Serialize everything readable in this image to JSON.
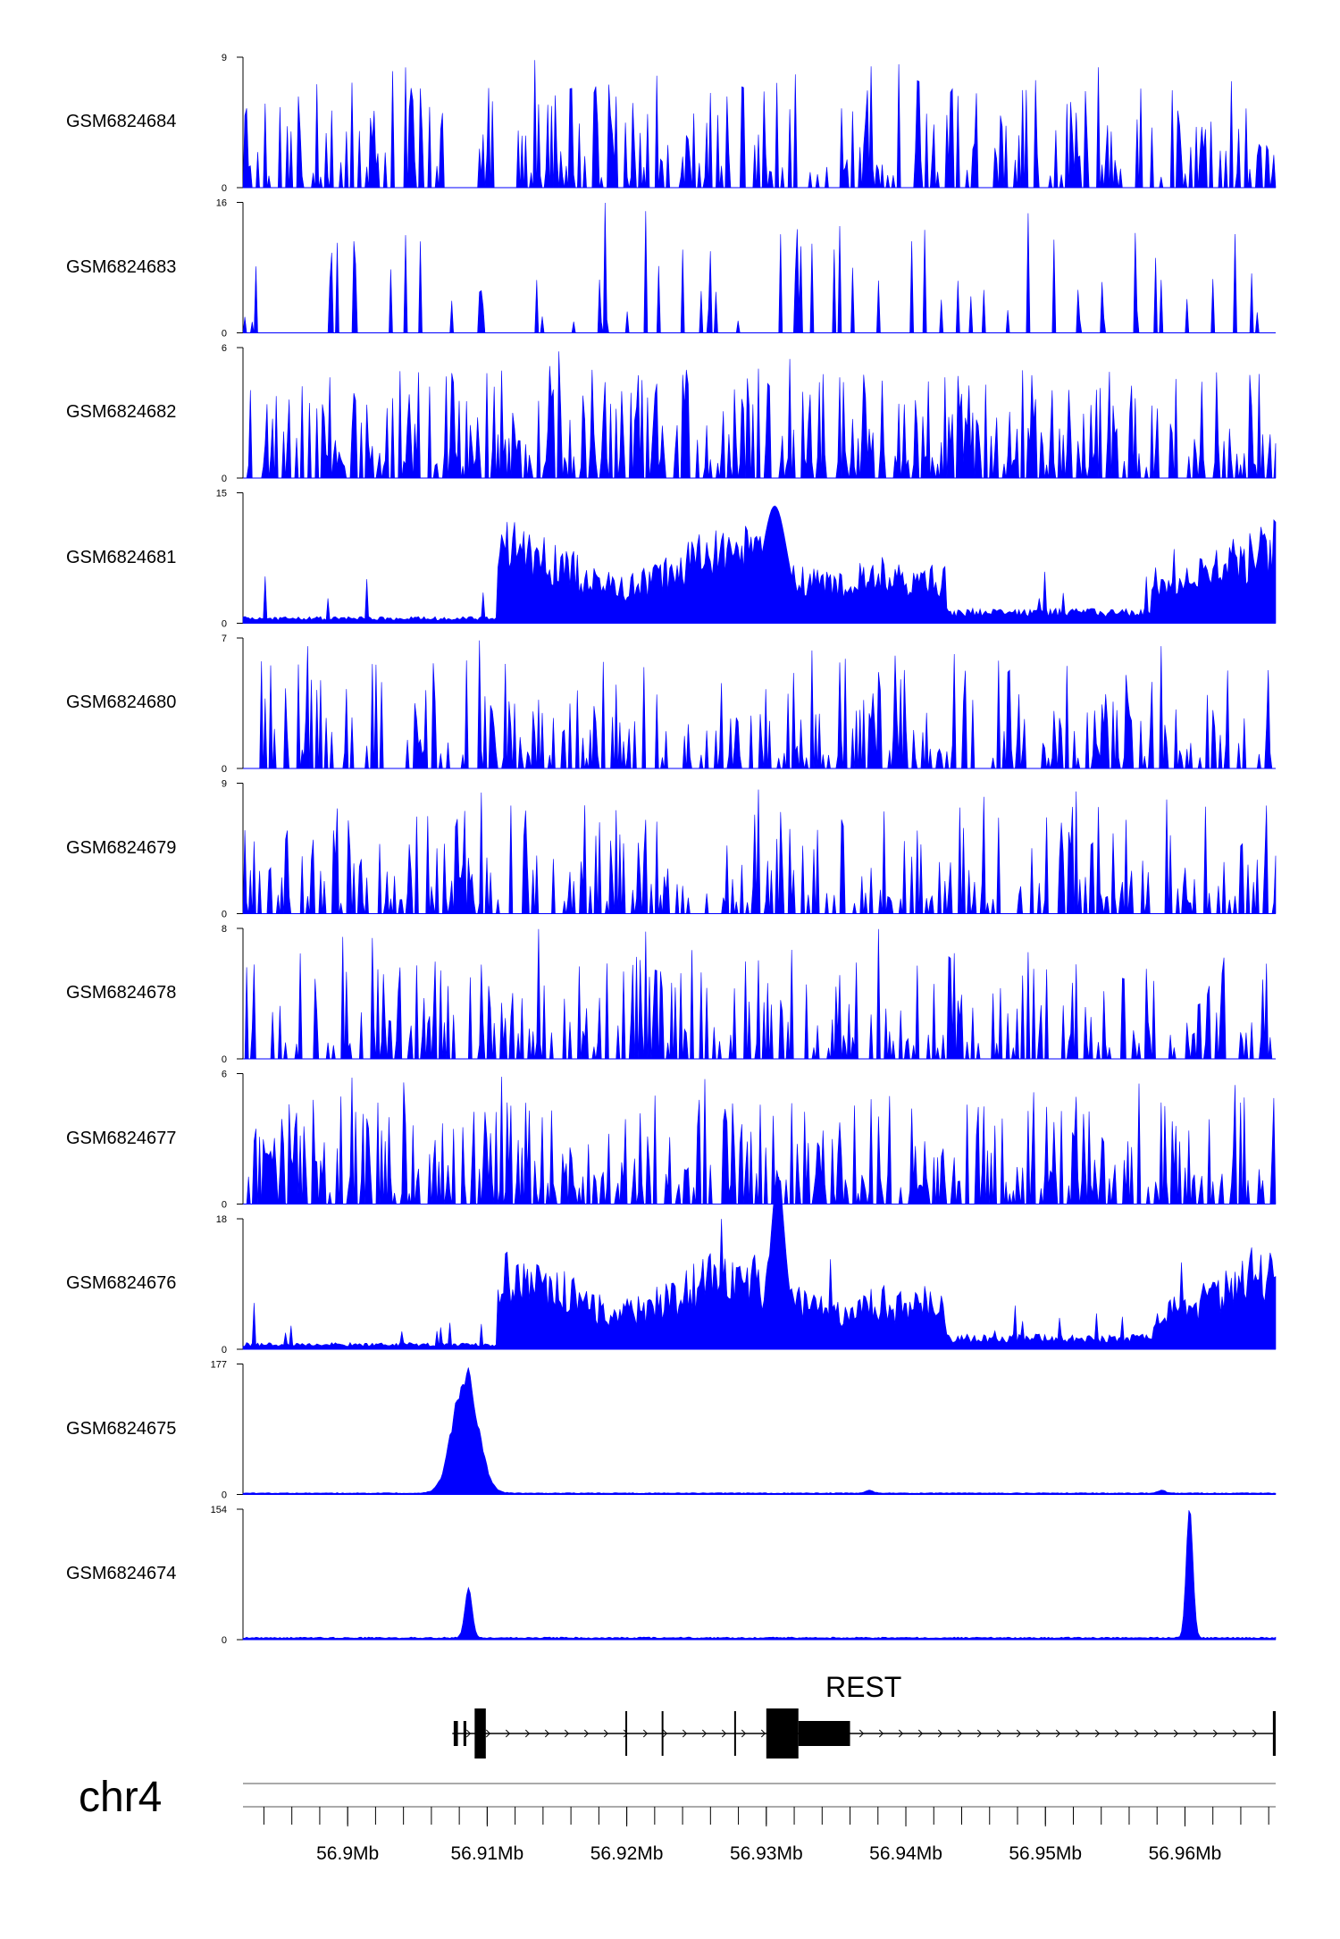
{
  "chart_data": {
    "type": "area",
    "chromosome": "chr4",
    "x_range_mb": [
      56.8925,
      56.9665
    ],
    "color": "#0000FF",
    "tracks": [
      {
        "name": "GSM6824684",
        "ymax": 9,
        "ymin": 0,
        "profile": "sparse"
      },
      {
        "name": "GSM6824683",
        "ymax": 16,
        "ymin": 0,
        "profile": "very-sparse"
      },
      {
        "name": "GSM6824682",
        "ymax": 6,
        "ymin": 0,
        "profile": "dense"
      },
      {
        "name": "GSM6824681",
        "ymax": 15,
        "ymin": 0,
        "profile": "broad"
      },
      {
        "name": "GSM6824680",
        "ymax": 7,
        "ymin": 0,
        "profile": "sparse"
      },
      {
        "name": "GSM6824679",
        "ymax": 9,
        "ymin": 0,
        "profile": "sparse"
      },
      {
        "name": "GSM6824678",
        "ymax": 8,
        "ymin": 0,
        "profile": "sparse"
      },
      {
        "name": "GSM6824677",
        "ymax": 6,
        "ymin": 0,
        "profile": "dense"
      },
      {
        "name": "GSM6824676",
        "ymax": 18,
        "ymin": 0,
        "profile": "broad-peak"
      },
      {
        "name": "GSM6824675",
        "ymax": 177,
        "ymin": 0,
        "profile": "single-peak"
      },
      {
        "name": "GSM6824674",
        "ymax": 154,
        "ymin": 0,
        "profile": "two-peaks"
      }
    ],
    "gene": {
      "name": "REST",
      "strand": "+",
      "start_mb": 56.9075,
      "end_mb": 56.9665,
      "exons": [
        {
          "start_mb": 56.9076,
          "end_mb": 56.9079,
          "type": "thin"
        },
        {
          "start_mb": 56.9083,
          "end_mb": 56.9085,
          "type": "thin"
        },
        {
          "start_mb": 56.9091,
          "end_mb": 56.9099,
          "type": "cds"
        },
        {
          "start_mb": 56.9199,
          "end_mb": 56.92,
          "type": "cds"
        },
        {
          "start_mb": 56.9225,
          "end_mb": 56.9226,
          "type": "cds"
        },
        {
          "start_mb": 56.9277,
          "end_mb": 56.9278,
          "type": "cds"
        },
        {
          "start_mb": 56.93,
          "end_mb": 56.9323,
          "type": "cds"
        },
        {
          "start_mb": 56.9323,
          "end_mb": 56.936,
          "type": "utr"
        },
        {
          "start_mb": 56.9663,
          "end_mb": 56.9665,
          "type": "cds"
        }
      ]
    },
    "x_ticks_mb": [
      56.9,
      56.91,
      56.92,
      56.93,
      56.94,
      56.95,
      56.96
    ],
    "x_tick_labels": [
      "56.9Mb",
      "56.91Mb",
      "56.92Mb",
      "56.93Mb",
      "56.94Mb",
      "56.95Mb",
      "56.96Mb"
    ],
    "minor_tick_step_mb": 0.002
  }
}
